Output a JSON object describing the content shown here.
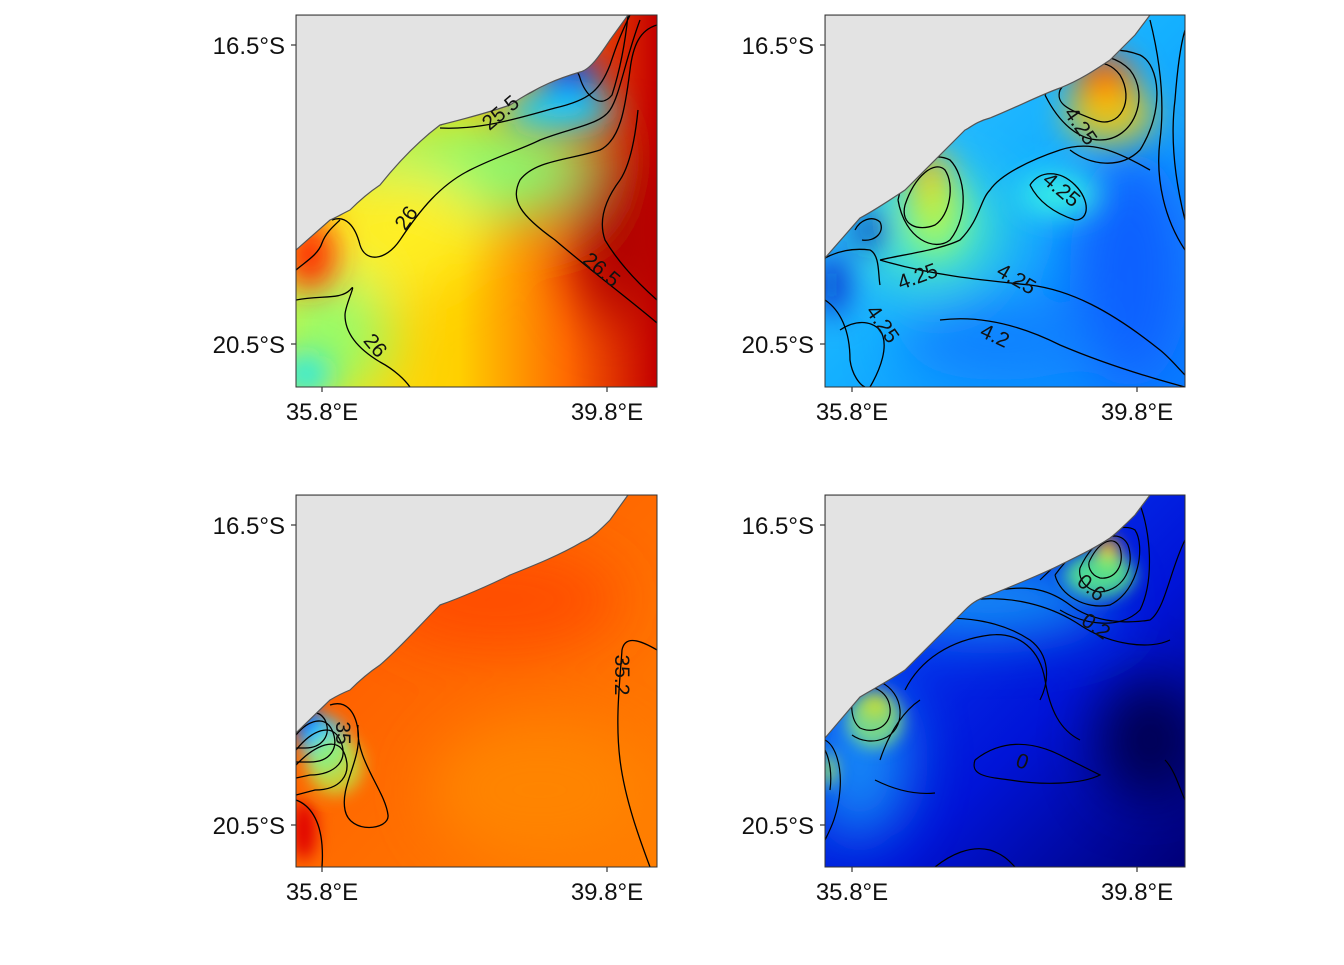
{
  "figure": {
    "panels": [
      {
        "id": "top-left",
        "y_tick_labels": [
          "16.5°S",
          "20.5°S"
        ],
        "x_tick_labels": [
          "35.8°E",
          "39.8°E"
        ],
        "contour_labels": [
          "25.5",
          "26",
          "26.5",
          "26"
        ]
      },
      {
        "id": "top-right",
        "y_tick_labels": [
          "16.5°S",
          "20.5°S"
        ],
        "x_tick_labels": [
          "35.8°E",
          "39.8°E"
        ],
        "contour_labels": [
          "4.25",
          "4.25",
          "4.25",
          "4.25",
          "4.25",
          "4.2"
        ]
      },
      {
        "id": "bottom-left",
        "y_tick_labels": [
          "16.5°S",
          "20.5°S"
        ],
        "x_tick_labels": [
          "35.8°E",
          "39.8°E"
        ],
        "contour_labels": [
          "35.2",
          "35"
        ]
      },
      {
        "id": "bottom-right",
        "y_tick_labels": [
          "16.5°S",
          "20.5°S"
        ],
        "x_tick_labels": [
          "35.8°E",
          "39.8°E"
        ],
        "contour_labels": [
          "0.6",
          "0.2",
          "0"
        ]
      }
    ],
    "colors": {
      "land": "#e3e3e3",
      "coast": "#555555",
      "contour": "#000000",
      "palette_low": "#0000c8",
      "palette_high": "#c80000"
    }
  }
}
